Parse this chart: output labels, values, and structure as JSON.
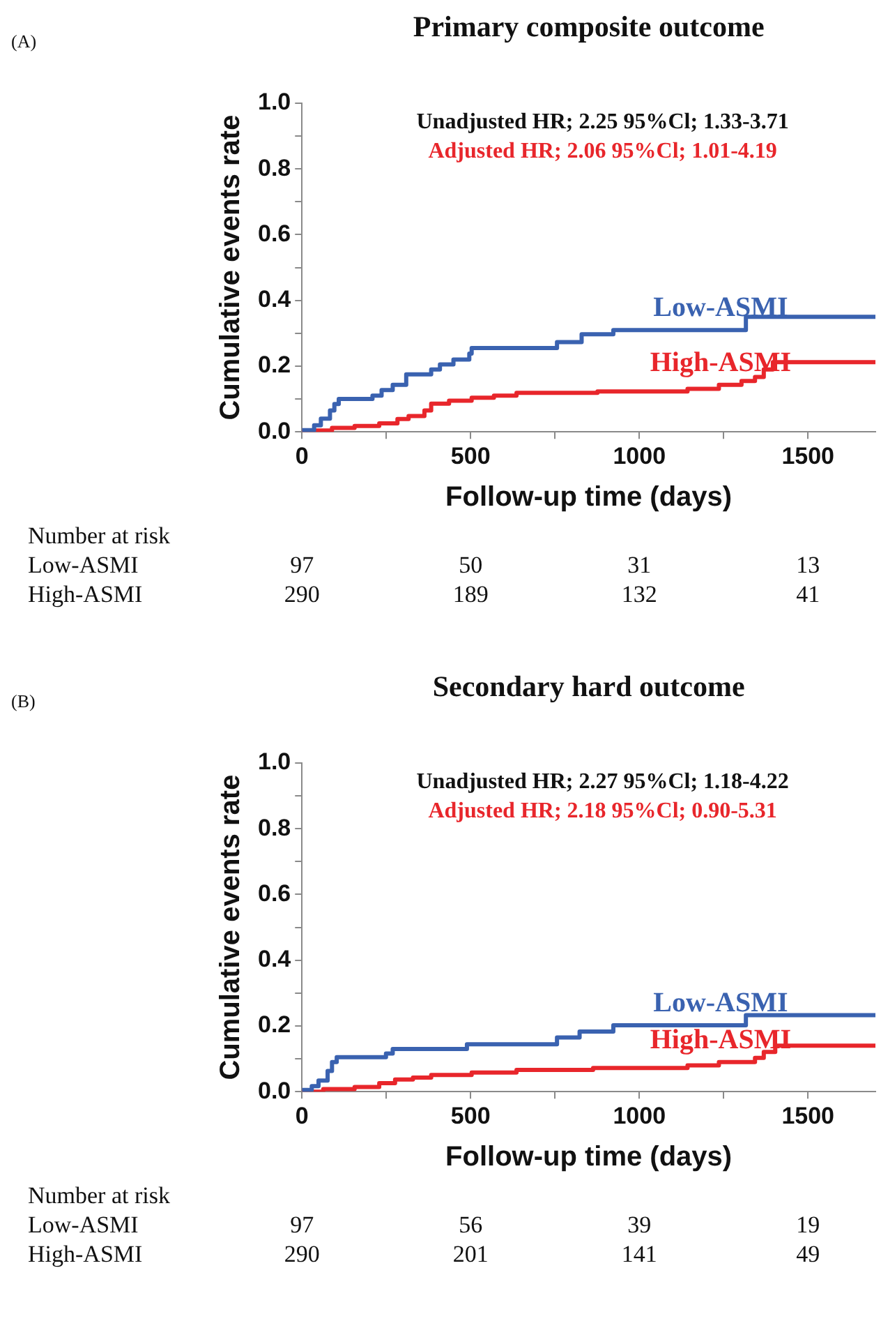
{
  "chart_data": [
    {
      "type": "step",
      "title": "Primary composite outcome",
      "xlabel": "Follow-up time (days)",
      "ylabel": "Cumulative events rate",
      "xlim": [
        0,
        1700
      ],
      "ylim": [
        0,
        1
      ],
      "xticks": [
        0,
        {
          "value": 250,
          "label": null
        },
        500,
        {
          "value": 750,
          "label": null
        },
        1000,
        {
          "value": 1250,
          "label": null
        },
        1500
      ],
      "yticks": [
        {
          "value": 0,
          "label": "0.0"
        },
        {
          "value": 0.1,
          "label": null
        },
        {
          "value": 0.2,
          "label": "0.2"
        },
        {
          "value": 0.3,
          "label": null
        },
        {
          "value": 0.4,
          "label": "0.4"
        },
        {
          "value": 0.5,
          "label": null
        },
        {
          "value": 0.6,
          "label": "0.6"
        },
        {
          "value": 0.7,
          "label": null
        },
        {
          "value": 0.8,
          "label": "0.8"
        },
        {
          "value": 0.9,
          "label": null
        },
        {
          "value": 1,
          "label": "1.0"
        }
      ],
      "series": [
        {
          "name": "Low-ASMI",
          "color": "#3a62b0",
          "x": [
            0,
            36,
            56,
            83,
            96,
            109,
            209,
            236,
            269,
            309,
            383,
            409,
            449,
            496,
            503,
            756,
            829,
            923,
            1316,
            1700
          ],
          "values": [
            0.005,
            0.02,
            0.04,
            0.065,
            0.085,
            0.1,
            0.11,
            0.127,
            0.143,
            0.175,
            0.19,
            0.205,
            0.22,
            0.238,
            0.255,
            0.273,
            0.297,
            0.31,
            0.35,
            0.35
          ]
        },
        {
          "name": "High-ASMI",
          "color": "#e8262b",
          "x": [
            0,
            36,
            89,
            156,
            229,
            283,
            316,
            363,
            383,
            436,
            503,
            569,
            636,
            876,
            1143,
            1236,
            1303,
            1343,
            1369,
            1396,
            1700
          ],
          "values": [
            0,
            0.004,
            0.012,
            0.018,
            0.026,
            0.039,
            0.048,
            0.065,
            0.086,
            0.095,
            0.104,
            0.11,
            0.119,
            0.123,
            0.131,
            0.143,
            0.155,
            0.167,
            0.19,
            0.212,
            0.212
          ]
        }
      ],
      "marker": "none",
      "annotations": [
        "(A)",
        "Unadjusted HR; 2.25 95%Cl; 1.33-3.71",
        "Adjusted HR; 2.06 95%Cl; 1.01-4.19",
        "Number at risk",
        "Low-ASMI",
        "97",
        "50",
        "31",
        "13",
        "High-ASMI",
        "290",
        "189",
        "132",
        "41"
      ]
    },
    {
      "type": "step",
      "title": "Secondary hard outcome",
      "xlabel": "Follow-up time (days)",
      "ylabel": "Cumulative events rate",
      "xlim": [
        0,
        1700
      ],
      "ylim": [
        0,
        1
      ],
      "xticks": [
        0,
        {
          "value": 250,
          "label": null
        },
        500,
        {
          "value": 750,
          "label": null
        },
        1000,
        {
          "value": 1250,
          "label": null
        },
        1500
      ],
      "yticks": [
        {
          "value": 0,
          "label": "0.0"
        },
        {
          "value": 0.1,
          "label": null
        },
        {
          "value": 0.2,
          "label": "0.2"
        },
        {
          "value": 0.3,
          "label": null
        },
        {
          "value": 0.4,
          "label": "0.4"
        },
        {
          "value": 0.5,
          "label": null
        },
        {
          "value": 0.6,
          "label": "0.6"
        },
        {
          "value": 0.7,
          "label": null
        },
        {
          "value": 0.8,
          "label": "0.8"
        },
        {
          "value": 0.9,
          "label": null
        },
        {
          "value": 1,
          "label": "1.0"
        }
      ],
      "series": [
        {
          "name": "Low-ASMI",
          "color": "#3a62b0",
          "x": [
            0,
            29,
            49,
            76,
            89,
            103,
            249,
            269,
            489,
            756,
            823,
            923,
            1316,
            1700
          ],
          "values": [
            0.005,
            0.017,
            0.034,
            0.063,
            0.09,
            0.105,
            0.116,
            0.13,
            0.144,
            0.165,
            0.183,
            0.202,
            0.233,
            0.233
          ]
        },
        {
          "name": "High-ASMI",
          "color": "#e8262b",
          "x": [
            0,
            63,
            156,
            229,
            276,
            329,
            383,
            503,
            636,
            863,
            1143,
            1236,
            1343,
            1369,
            1403,
            1700
          ],
          "values": [
            0,
            0.008,
            0.014,
            0.026,
            0.037,
            0.043,
            0.051,
            0.058,
            0.066,
            0.072,
            0.08,
            0.09,
            0.103,
            0.121,
            0.14,
            0.14
          ]
        }
      ],
      "marker": "none",
      "annotations": [
        "(B)",
        "Unadjusted HR; 2.27 95%Cl; 1.18-4.22",
        "Adjusted HR; 2.18 95%Cl; 0.90-5.31",
        "Number at risk",
        "Low-ASMI",
        "97",
        "56",
        "39",
        "19",
        "High-ASMI",
        "290",
        "201",
        "141",
        "49"
      ]
    }
  ]
}
